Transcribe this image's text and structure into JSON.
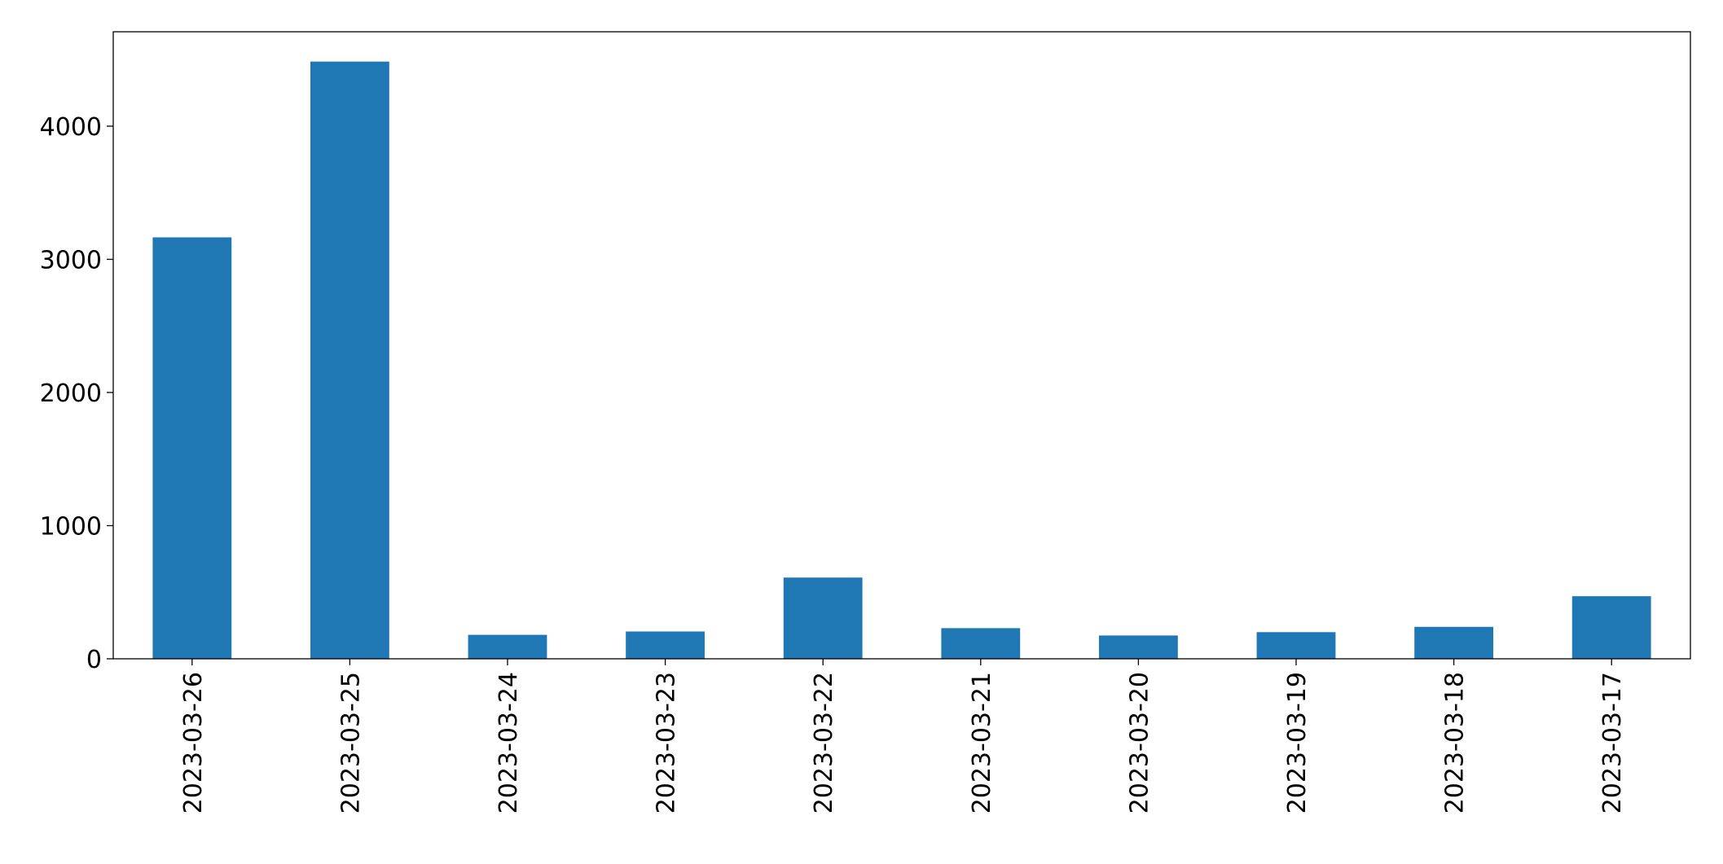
{
  "chart_data": {
    "type": "bar",
    "categories": [
      "2023-03-26",
      "2023-03-25",
      "2023-03-24",
      "2023-03-23",
      "2023-03-22",
      "2023-03-21",
      "2023-03-20",
      "2023-03-19",
      "2023-03-18",
      "2023-03-17"
    ],
    "values": [
      3165,
      4485,
      180,
      205,
      610,
      230,
      175,
      200,
      240,
      470
    ],
    "color": "#1f77b4",
    "ylim": [
      0,
      4709
    ],
    "yticks": [
      0,
      1000,
      2000,
      3000,
      4000
    ],
    "grid": false
  }
}
